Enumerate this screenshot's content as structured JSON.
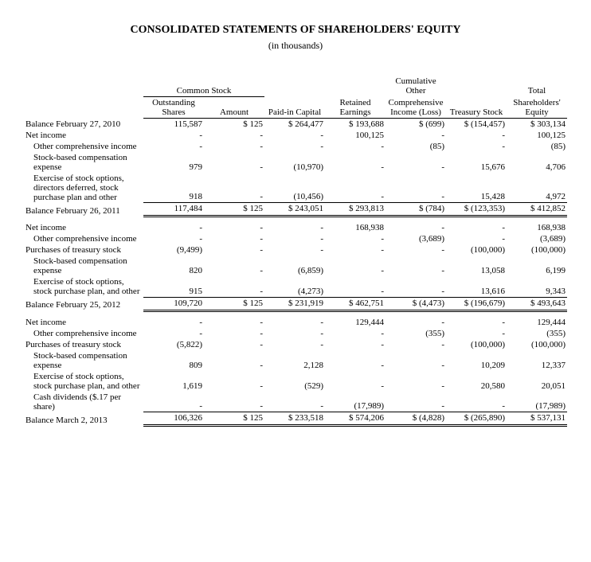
{
  "title": "CONSOLIDATED STATEMENTS OF SHAREHOLDERS' EQUITY",
  "subtitle": "(in thousands)",
  "headers": {
    "group_common": "Common Stock",
    "group_cum": "Cumulative Other",
    "group_total": "Total",
    "outstanding_shares": "Outstanding Shares",
    "amount": "Amount",
    "paid_in": "Paid-in Capital",
    "retained": "Retained Earnings",
    "comp_income": "Comprehensive Income (Loss)",
    "treasury": "Treasury Stock",
    "shareholders": "Shareholders' Equity"
  },
  "rows": [
    {
      "label": "Balance February 27, 2010",
      "style": "single-top",
      "cells": [
        "115,587",
        "$   125",
        "$  264,477",
        "$  193,688",
        "$   (699)",
        "$  (154,457)",
        "$  303,134"
      ]
    },
    {
      "label": "Net income",
      "cells": [
        "-",
        "-",
        "-",
        "100,125",
        "-",
        "-",
        "100,125"
      ]
    },
    {
      "label": "Other comprehensive income",
      "indent": true,
      "cells": [
        "-",
        "-",
        "-",
        "-",
        "(85)",
        "-",
        "(85)"
      ]
    },
    {
      "label": "Stock-based compensation expense",
      "indent": true,
      "cells": [
        "979",
        "-",
        "(10,970)",
        "-",
        "-",
        "15,676",
        "4,706"
      ]
    },
    {
      "label": "Exercise of stock options, directors deferred, stock purchase plan and other",
      "indent": true,
      "cells": [
        "918",
        "-",
        "(10,456)",
        "-",
        "-",
        "15,428",
        "4,972"
      ]
    },
    {
      "label": "Balance February 26, 2011",
      "style": "dbl",
      "cells": [
        "117,484",
        "$   125",
        "$  243,051",
        "$  293,813",
        "$   (784)",
        "$  (123,353)",
        "$  412,852"
      ]
    },
    {
      "spacer": true
    },
    {
      "label": "Net income",
      "cells": [
        "-",
        "-",
        "-",
        "168,938",
        "-",
        "-",
        "168,938"
      ]
    },
    {
      "label": "Other comprehensive income",
      "indent": true,
      "cells": [
        "-",
        "-",
        "-",
        "-",
        "(3,689)",
        "-",
        "(3,689)"
      ]
    },
    {
      "label": "Purchases of treasury stock",
      "cells": [
        "(9,499)",
        "-",
        "-",
        "-",
        "-",
        "(100,000)",
        "(100,000)"
      ]
    },
    {
      "label": "Stock-based compensation expense",
      "indent": true,
      "cells": [
        "820",
        "-",
        "(6,859)",
        "-",
        "-",
        "13,058",
        "6,199"
      ]
    },
    {
      "label": "Exercise of stock options, stock purchase plan, and other",
      "indent": true,
      "cells": [
        "915",
        "-",
        "(4,273)",
        "-",
        "-",
        "13,616",
        "9,343"
      ]
    },
    {
      "label": "Balance February 25, 2012",
      "style": "dbl",
      "cells": [
        "109,720",
        "$   125",
        "$  231,919",
        "$  462,751",
        "$  (4,473)",
        "$  (196,679)",
        "$  493,643"
      ]
    },
    {
      "spacer": true
    },
    {
      "label": "Net income",
      "cells": [
        "-",
        "-",
        "-",
        "129,444",
        "-",
        "-",
        "129,444"
      ]
    },
    {
      "label": "Other comprehensive income",
      "indent": true,
      "cells": [
        "-",
        "-",
        "-",
        "-",
        "(355)",
        "-",
        "(355)"
      ]
    },
    {
      "label": "Purchases of treasury stock",
      "cells": [
        "(5,822)",
        "-",
        "-",
        "-",
        "-",
        "(100,000)",
        "(100,000)"
      ]
    },
    {
      "label": "Stock-based compensation expense",
      "indent": true,
      "cells": [
        "809",
        "-",
        "2,128",
        "-",
        "-",
        "10,209",
        "12,337"
      ]
    },
    {
      "label": "Exercise of stock options, stock purchase plan, and other",
      "indent": true,
      "cells": [
        "1,619",
        "-",
        "(529)",
        "-",
        "-",
        "20,580",
        "20,051"
      ]
    },
    {
      "label": "Cash dividends ($.17 per share)",
      "indent": true,
      "cells": [
        "-",
        "-",
        "-",
        "(17,989)",
        "-",
        "-",
        "(17,989)"
      ]
    },
    {
      "label": "Balance March 2, 2013",
      "style": "dbl",
      "cells": [
        "106,326",
        "$   125",
        "$  233,518",
        "$  574,206",
        "$  (4,828)",
        "$  (265,890)",
        "$  537,131"
      ]
    }
  ]
}
